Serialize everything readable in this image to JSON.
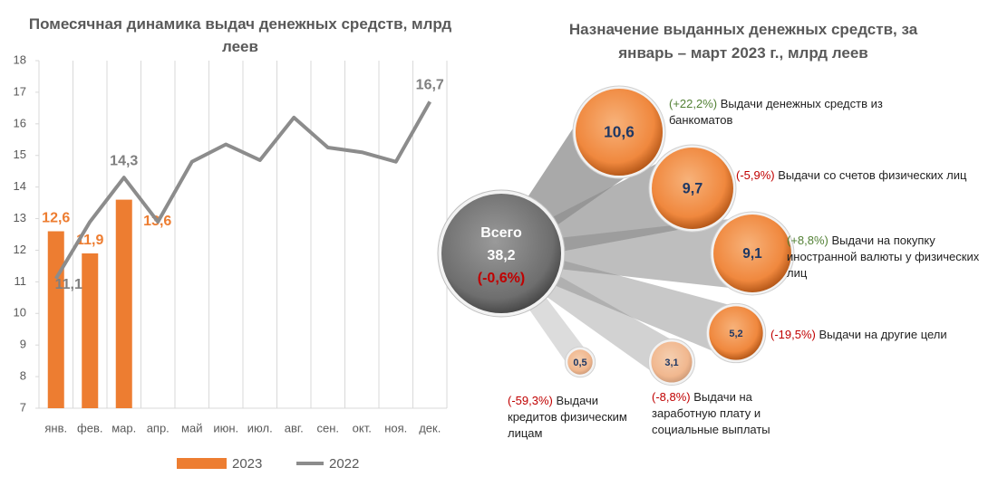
{
  "chart_data": [
    {
      "type": "bar_line",
      "title": "Помесячная динамика выдач денежных средств, млрд леев",
      "categories": [
        "янв.",
        "фев.",
        "мар.",
        "апр.",
        "май",
        "июн.",
        "июл.",
        "авг.",
        "сен.",
        "окт.",
        "ноя.",
        "дек."
      ],
      "series": [
        {
          "name": "2023",
          "kind": "bar",
          "color": "#ed7d31",
          "values": [
            12.6,
            11.9,
            13.6,
            null,
            null,
            null,
            null,
            null,
            null,
            null,
            null,
            null
          ],
          "value_labels": [
            "12,6",
            "11,9",
            "13,6",
            null,
            null,
            null,
            null,
            null,
            null,
            null,
            null,
            null
          ]
        },
        {
          "name": "2022",
          "kind": "line",
          "color": "#8c8c8c",
          "values": [
            11.1,
            12.9,
            14.3,
            12.9,
            14.8,
            15.35,
            14.85,
            16.2,
            15.25,
            15.1,
            14.8,
            16.7
          ],
          "value_labels": [
            "11,1",
            null,
            "14,3",
            null,
            null,
            null,
            null,
            null,
            null,
            null,
            null,
            "16,7"
          ]
        }
      ],
      "ylim": [
        7,
        18
      ],
      "yticks": [
        7,
        8,
        9,
        10,
        11,
        12,
        13,
        14,
        15,
        16,
        17,
        18
      ],
      "legend": "bottom"
    },
    {
      "type": "bubble",
      "title": "Назначение выданных денежных средств, за январь – март 2023 г., млрд леев",
      "total": {
        "label": "Всего",
        "value": 38.2,
        "value_label": "38,2",
        "change": "(-0,6%)",
        "change_color": "#c00000"
      },
      "items": [
        {
          "value": 10.6,
          "value_label": "10,6",
          "change": "(+22,2%)",
          "change_color": "#538135",
          "label": "Выдачи денежных средств из банкоматов"
        },
        {
          "value": 9.7,
          "value_label": "9,7",
          "change": "(-5,9%)",
          "change_color": "#c00000",
          "label": "Выдачи со счетов физических лиц"
        },
        {
          "value": 9.1,
          "value_label": "9,1",
          "change": "(+8,8%)",
          "change_color": "#538135",
          "label": "Выдачи на покупку иностранной валюты у физических лиц"
        },
        {
          "value": 5.2,
          "value_label": "5,2",
          "change": "(-19,5%)",
          "change_color": "#c00000",
          "label": "Выдачи на другие цели"
        },
        {
          "value": 3.1,
          "value_label": "3,1",
          "change": "(-8,8%)",
          "change_color": "#c00000",
          "label": "Выдачи на заработную плату и социальные выплаты"
        },
        {
          "value": 0.5,
          "value_label": "0,5",
          "change": "(-59,3%)",
          "change_color": "#c00000",
          "label": "Выдачи кредитов физическим лицам"
        }
      ]
    }
  ]
}
